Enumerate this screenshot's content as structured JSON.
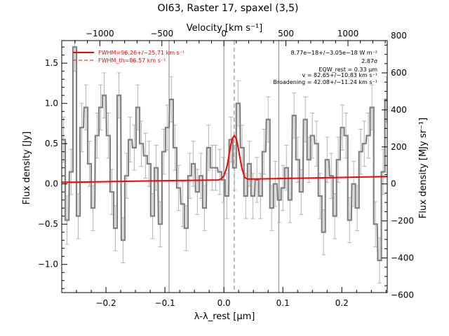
{
  "chart_data": {
    "type": "line",
    "title": "OI63, Raster 17, spaxel (3,5)",
    "xlabel": "λ-λ_rest [μm]",
    "ylabel": "Flux density [Jy]",
    "top_label": "Velocity [km s⁻¹]",
    "right_label": "Flux density [MJy sr⁻¹]",
    "xlim": [
      -0.275,
      0.277
    ],
    "ylim": [
      -1.35,
      1.78
    ],
    "x_ticks": [
      -0.2,
      -0.1,
      0.0,
      0.1,
      0.2
    ],
    "x_tick_labels": [
      "−0.2",
      "−0.1",
      "0.0",
      "0.1",
      "0.2"
    ],
    "y_ticks": [
      -1.0,
      -0.5,
      0.0,
      0.5,
      1.0,
      1.5
    ],
    "y_tick_labels": [
      "−1.0",
      "−0.5",
      "0.0",
      "0.5",
      "1.0",
      "1.5"
    ],
    "top_ticks_kms": [
      -1000,
      -500,
      0,
      500,
      1000
    ],
    "top_tick_labels": [
      "−1000",
      "−500",
      "0",
      "500",
      "1000"
    ],
    "top_scale_kms_per_um": 4753,
    "right_ticks": [
      -600,
      -400,
      -200,
      0,
      200,
      400,
      600,
      800
    ],
    "right_tick_labels": [
      "−600",
      "−400",
      "−200",
      "0",
      "200",
      "400",
      "600",
      "800"
    ],
    "right_scale_mjy_per_jy": 435,
    "vertical_lines_um": [
      -0.093,
      0.0,
      0.093
    ],
    "dashed_line_um": 0.0175,
    "legend": {
      "position": "top-left",
      "entries": [
        {
          "label": "FWHM=96.26+/−25.71 km s⁻¹",
          "style": "solid"
        },
        {
          "label": "FWHM_th=86.57 km s⁻¹",
          "style": "dashed"
        }
      ]
    },
    "annotations": [
      "8.77e−18+/−3.05e−18 W m⁻²",
      "2.87σ",
      "EQW_rest = 0.33 μm",
      "v = 82.65+/−10.83 km s⁻¹",
      "Broadening = 42.08+/−11.24 km s⁻¹"
    ],
    "colors": {
      "data": "#808080",
      "fit": "#ff0000",
      "errorbar": "#b4b4b4"
    },
    "series": [
      {
        "name": "data",
        "x": [
          -0.272,
          -0.266,
          -0.259,
          -0.253,
          -0.247,
          -0.241,
          -0.234,
          -0.228,
          -0.222,
          -0.215,
          -0.209,
          -0.203,
          -0.196,
          -0.19,
          -0.184,
          -0.178,
          -0.171,
          -0.165,
          -0.159,
          -0.152,
          -0.146,
          -0.14,
          -0.133,
          -0.127,
          -0.121,
          -0.115,
          -0.108,
          -0.102,
          -0.096,
          -0.089,
          -0.083,
          -0.077,
          -0.07,
          -0.064,
          -0.058,
          -0.052,
          -0.045,
          -0.039,
          -0.033,
          -0.026,
          -0.02,
          -0.014,
          -0.007,
          -0.001,
          0.005,
          0.012,
          0.018,
          0.024,
          0.031,
          0.037,
          0.043,
          0.049,
          0.056,
          0.062,
          0.068,
          0.075,
          0.081,
          0.087,
          0.094,
          0.1,
          0.106,
          0.112,
          0.119,
          0.125,
          0.131,
          0.138,
          0.144,
          0.15,
          0.157,
          0.163,
          0.169,
          0.175,
          0.182,
          0.188,
          0.194,
          0.201,
          0.207,
          0.213,
          0.22,
          0.226,
          0.232,
          0.238,
          0.245,
          0.251,
          0.257,
          0.264,
          0.27,
          0.276
        ],
        "y": [
          0.55,
          -0.45,
          0.15,
          1.7,
          -0.4,
          0.7,
          0.95,
          0.25,
          -0.3,
          0.6,
          0.95,
          1.1,
          0.6,
          -0.1,
          -0.55,
          1.1,
          -0.7,
          0.1,
          0.55,
          0.45,
          0.95,
          0.5,
          0.35,
          0.25,
          -0.4,
          0.2,
          -0.5,
          0.4,
          0.7,
          1.05,
          0.45,
          -0.05,
          -0.25,
          -0.55,
          0.1,
          0.25,
          -0.1,
          0.1,
          -0.3,
          0.45,
          0.2,
          0.2,
          0.15,
          0.05,
          -0.15,
          0.55,
          0.2,
          1.0,
          0.45,
          -0.15,
          0.25,
          -0.15,
          0.05,
          -0.15,
          0.4,
          0.8,
          -0.3,
          0.0,
          -0.2,
          -0.05,
          0.2,
          -0.2,
          0.85,
          0.3,
          -0.1,
          0.8,
          0.3,
          0.6,
          0.5,
          -0.15,
          -0.6,
          0.3,
          0.1,
          -0.4,
          0.3,
          0.7,
          0.6,
          -0.45,
          0.0,
          -0.3,
          0.4,
          0.5,
          0.6,
          0.95,
          -0.5,
          -0.95,
          0.15,
          1.05
        ],
        "yerr": [
          0.28,
          0.3,
          0.28,
          0.3,
          0.28,
          0.3,
          0.28,
          0.28,
          0.28,
          0.28,
          0.28,
          0.28,
          0.28,
          0.28,
          0.28,
          0.28,
          0.28,
          0.28,
          0.28,
          0.28,
          0.28,
          0.28,
          0.28,
          0.28,
          0.28,
          0.28,
          0.28,
          0.28,
          0.28,
          0.28,
          0.28,
          0.28,
          0.28,
          0.28,
          0.28,
          0.28,
          0.28,
          0.28,
          0.28,
          0.28,
          0.28,
          0.28,
          0.28,
          0.28,
          0.28,
          0.28,
          0.28,
          0.28,
          0.28,
          0.28,
          0.28,
          0.28,
          0.28,
          0.28,
          0.28,
          0.28,
          0.28,
          0.28,
          0.28,
          0.28,
          0.28,
          0.28,
          0.28,
          0.28,
          0.28,
          0.28,
          0.28,
          0.28,
          0.28,
          0.28,
          0.28,
          0.28,
          0.28,
          0.28,
          0.28,
          0.28,
          0.28,
          0.28,
          0.28,
          0.28,
          0.28,
          0.28,
          0.28,
          0.28,
          0.28,
          0.28,
          0.28,
          0.28
        ]
      },
      {
        "name": "FWHM=96.26+/−25.71 km s⁻¹",
        "x": [
          -0.275,
          -0.25,
          -0.2,
          -0.15,
          -0.1,
          -0.05,
          -0.01,
          -0.005,
          0.0,
          0.005,
          0.008,
          0.011,
          0.014,
          0.0175,
          0.021,
          0.024,
          0.027,
          0.03,
          0.035,
          0.04,
          0.05,
          0.1,
          0.15,
          0.2,
          0.25,
          0.277
        ],
        "y": [
          0.02,
          0.022,
          0.028,
          0.034,
          0.04,
          0.045,
          0.049,
          0.06,
          0.1,
          0.21,
          0.33,
          0.46,
          0.56,
          0.6,
          0.56,
          0.46,
          0.33,
          0.21,
          0.08,
          0.06,
          0.06,
          0.067,
          0.074,
          0.08,
          0.088,
          0.092
        ]
      }
    ]
  }
}
